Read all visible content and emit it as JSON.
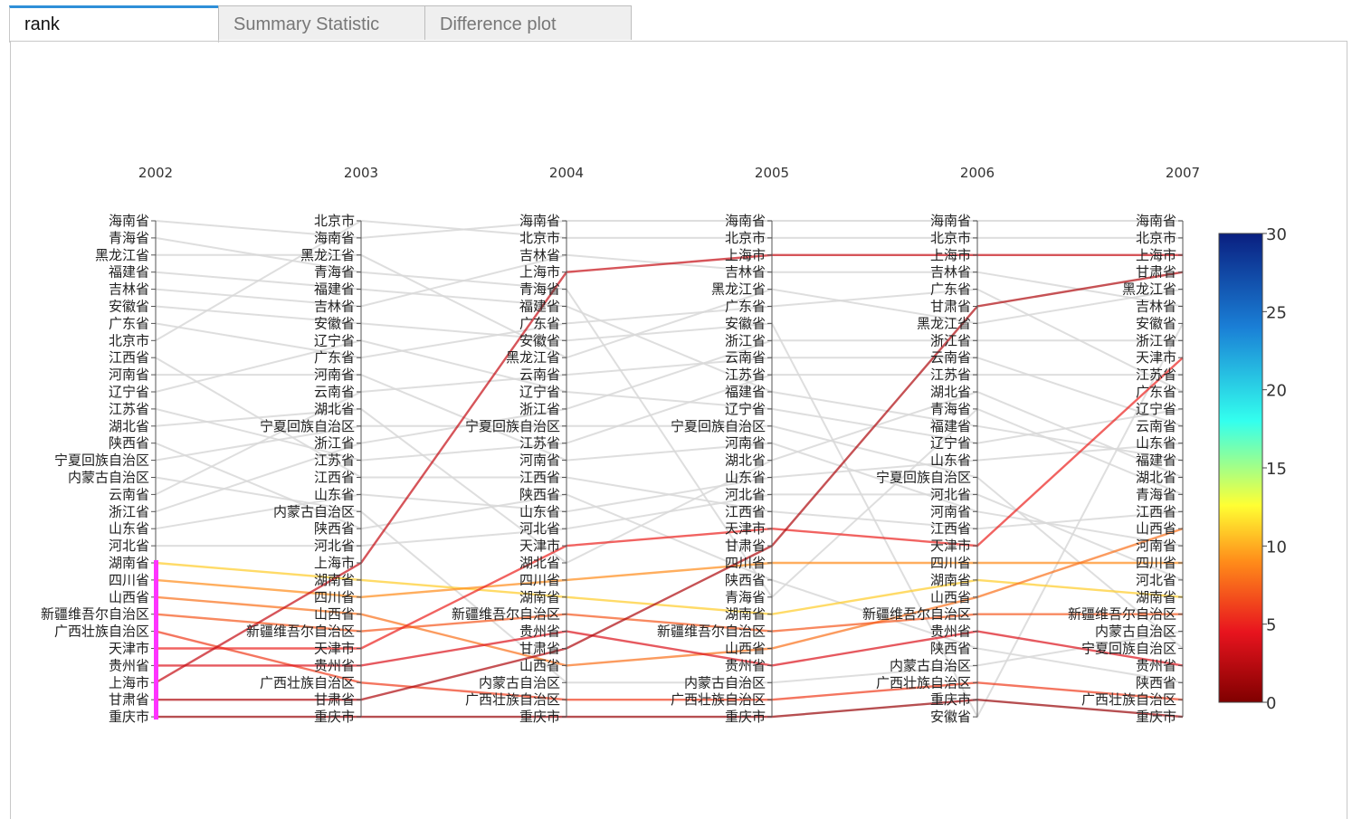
{
  "tabs": [
    {
      "label": "rank",
      "active": true
    },
    {
      "label": "Summary Statistic",
      "active": false
    },
    {
      "label": "Difference plot",
      "active": false
    }
  ],
  "chart_data": {
    "type": "parallel_categories",
    "dimensions": [
      "2002",
      "2003",
      "2004",
      "2005",
      "2006",
      "2007"
    ],
    "axes": [
      [
        "海南省",
        "青海省",
        "黑龙江省",
        "福建省",
        "吉林省",
        "安徽省",
        "广东省",
        "北京市",
        "江西省",
        "河南省",
        "辽宁省",
        "江苏省",
        "湖北省",
        "陕西省",
        "宁夏回族自治区",
        "内蒙古自治区",
        "云南省",
        "浙江省",
        "山东省",
        "河北省",
        "湖南省",
        "四川省",
        "山西省",
        "新疆维吾尔自治区",
        "广西壮族自治区",
        "天津市",
        "贵州省",
        "上海市",
        "甘肃省",
        "重庆市"
      ],
      [
        "北京市",
        "海南省",
        "黑龙江省",
        "青海省",
        "福建省",
        "吉林省",
        "安徽省",
        "辽宁省",
        "广东省",
        "河南省",
        "云南省",
        "湖北省",
        "宁夏回族自治区",
        "浙江省",
        "江苏省",
        "江西省",
        "山东省",
        "内蒙古自治区",
        "陕西省",
        "河北省",
        "上海市",
        "湖南省",
        "四川省",
        "山西省",
        "新疆维吾尔自治区",
        "天津市",
        "贵州省",
        "广西壮族自治区",
        "甘肃省",
        "重庆市"
      ],
      [
        "海南省",
        "北京市",
        "吉林省",
        "上海市",
        "青海省",
        "福建省",
        "广东省",
        "安徽省",
        "黑龙江省",
        "云南省",
        "辽宁省",
        "浙江省",
        "宁夏回族自治区",
        "江苏省",
        "河南省",
        "江西省",
        "陕西省",
        "山东省",
        "河北省",
        "天津市",
        "湖北省",
        "四川省",
        "湖南省",
        "新疆维吾尔自治区",
        "贵州省",
        "甘肃省",
        "山西省",
        "内蒙古自治区",
        "广西壮族自治区",
        "重庆市"
      ],
      [
        "海南省",
        "北京市",
        "上海市",
        "吉林省",
        "黑龙江省",
        "广东省",
        "安徽省",
        "浙江省",
        "云南省",
        "江苏省",
        "福建省",
        "辽宁省",
        "宁夏回族自治区",
        "河南省",
        "湖北省",
        "山东省",
        "河北省",
        "江西省",
        "天津市",
        "甘肃省",
        "四川省",
        "陕西省",
        "青海省",
        "湖南省",
        "新疆维吾尔自治区",
        "山西省",
        "贵州省",
        "内蒙古自治区",
        "广西壮族自治区",
        "重庆市"
      ],
      [
        "海南省",
        "北京市",
        "上海市",
        "吉林省",
        "广东省",
        "甘肃省",
        "黑龙江省",
        "浙江省",
        "云南省",
        "江苏省",
        "湖北省",
        "青海省",
        "福建省",
        "辽宁省",
        "山东省",
        "宁夏回族自治区",
        "河北省",
        "河南省",
        "江西省",
        "天津市",
        "四川省",
        "湖南省",
        "山西省",
        "新疆维吾尔自治区",
        "贵州省",
        "陕西省",
        "内蒙古自治区",
        "广西壮族自治区",
        "重庆市",
        "安徽省"
      ],
      [
        "海南省",
        "北京市",
        "上海市",
        "甘肃省",
        "黑龙江省",
        "吉林省",
        "安徽省",
        "浙江省",
        "天津市",
        "江苏省",
        "广东省",
        "辽宁省",
        "云南省",
        "山东省",
        "福建省",
        "湖北省",
        "青海省",
        "江西省",
        "山西省",
        "河南省",
        "四川省",
        "河北省",
        "湖南省",
        "新疆维吾尔自治区",
        "内蒙古自治区",
        "宁夏回族自治区",
        "贵州省",
        "陕西省",
        "广西壮族自治区",
        "重庆市"
      ]
    ],
    "highlighted_rows": [
      {
        "province": "重庆市",
        "color_value": 1
      },
      {
        "province": "甘肃省",
        "color_value": 2
      },
      {
        "province": "上海市",
        "color_value": 3
      },
      {
        "province": "贵州省",
        "color_value": 4
      },
      {
        "province": "天津市",
        "color_value": 5
      },
      {
        "province": "广西壮族自治区",
        "color_value": 6
      },
      {
        "province": "新疆维吾尔自治区",
        "color_value": 7
      },
      {
        "province": "山西省",
        "color_value": 8
      },
      {
        "province": "四川省",
        "color_value": 9
      },
      {
        "province": "湖南省",
        "color_value": 11
      }
    ],
    "colorbar": {
      "range": [
        0,
        30
      ],
      "ticks": [
        "0",
        "5",
        "10",
        "15",
        "20",
        "25",
        "30"
      ],
      "colorscale": [
        "#800000",
        "#e8141e",
        "#ff8c1a",
        "#ffff33",
        "#33ffee",
        "#1a7fd6",
        "#0a1f80"
      ]
    },
    "constraint_highlight": {
      "axis": "2002",
      "from_rank": 21,
      "to_rank": 30,
      "color": "#ff33ff"
    },
    "unselected_line_color": "#d8d8d8"
  }
}
